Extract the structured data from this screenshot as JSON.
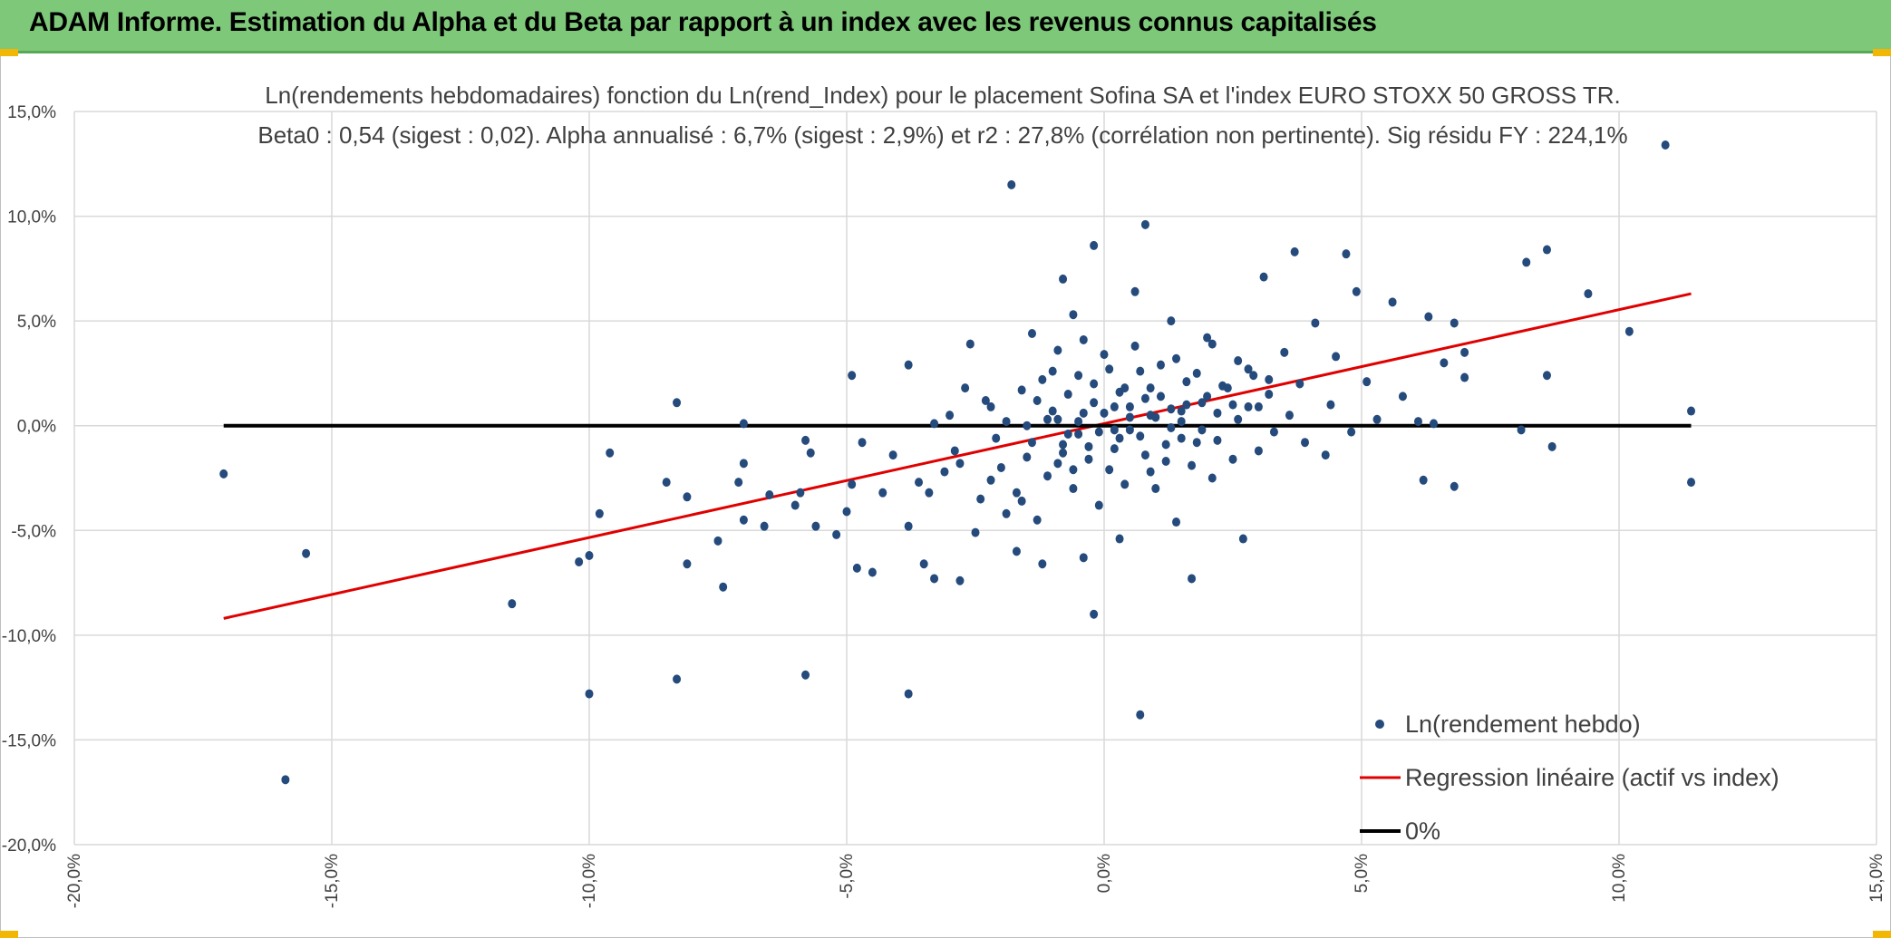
{
  "header": {
    "title": "ADAM Informe. Estimation du Alpha et du Beta par rapport à un index avec les revenus connus capitalisés"
  },
  "colors": {
    "banner": "#7ec87a",
    "points": "#254a7c",
    "regression": "#e00000",
    "zero_line": "#000000",
    "grid": "#d9d9d9",
    "accent": "#f2b705"
  },
  "chart_data": {
    "type": "scatter",
    "title": "Ln(rendements hebdomadaires) fonction du Ln(rend_Index) pour le placement Sofina SA et l'index EURO STOXX 50 GROSS TR.",
    "subtitle": "Beta0 : 0,54 (sigest : 0,02). Alpha annualisé : 6,7% (sigest : 2,9%) et r2 : 27,8% (corrélation non pertinente). Sig résidu FY : 224,1%",
    "xlabel": "",
    "ylabel": "",
    "xlim": [
      -20,
      15
    ],
    "ylim": [
      -20,
      15
    ],
    "x_ticks": [
      "-20,0%",
      "-15,0%",
      "-10,0%",
      "-5,0%",
      "0,0%",
      "5,0%",
      "10,0%",
      "15,0%"
    ],
    "y_ticks": [
      "15,0%",
      "10,0%",
      "5,0%",
      "0,0%",
      "-5,0%",
      "-10,0%",
      "-15,0%",
      "-20,0%"
    ],
    "grid": true,
    "legend_position": "bottom-right",
    "series": [
      {
        "name": "Ln(rendement hebdo)",
        "kind": "scatter",
        "points": [
          [
            -17.1,
            -2.3
          ],
          [
            -15.9,
            -16.9
          ],
          [
            -15.5,
            -6.1
          ],
          [
            -11.5,
            -8.5
          ],
          [
            -10.2,
            -6.5
          ],
          [
            -10.0,
            -12.8
          ],
          [
            -10.0,
            -6.2
          ],
          [
            -9.8,
            -4.2
          ],
          [
            -9.6,
            -1.3
          ],
          [
            -8.5,
            -2.7
          ],
          [
            -8.3,
            1.1
          ],
          [
            -8.3,
            -12.1
          ],
          [
            -8.1,
            -3.4
          ],
          [
            -8.1,
            -6.6
          ],
          [
            -7.5,
            -5.5
          ],
          [
            -7.4,
            -7.7
          ],
          [
            -7.1,
            -2.7
          ],
          [
            -7.0,
            0.1
          ],
          [
            -7.0,
            -1.8
          ],
          [
            -7.0,
            -4.5
          ],
          [
            -6.6,
            -4.8
          ],
          [
            -6.5,
            -3.3
          ],
          [
            -6.0,
            -3.8
          ],
          [
            -5.9,
            -3.2
          ],
          [
            -5.8,
            -11.9
          ],
          [
            -5.8,
            -0.7
          ],
          [
            -5.7,
            -1.3
          ],
          [
            -5.6,
            -4.8
          ],
          [
            -5.2,
            -5.2
          ],
          [
            -5.0,
            -4.1
          ],
          [
            -4.9,
            -2.8
          ],
          [
            -4.9,
            2.4
          ],
          [
            -4.8,
            -6.8
          ],
          [
            -4.7,
            -0.8
          ],
          [
            -4.5,
            -7.0
          ],
          [
            -4.3,
            -3.2
          ],
          [
            -4.1,
            -1.4
          ],
          [
            -3.8,
            2.9
          ],
          [
            -3.8,
            -12.8
          ],
          [
            -3.8,
            -4.8
          ],
          [
            -3.6,
            -2.7
          ],
          [
            -3.5,
            -6.6
          ],
          [
            -3.4,
            -3.2
          ],
          [
            -3.3,
            -7.3
          ],
          [
            -3.3,
            0.1
          ],
          [
            -3.1,
            -2.2
          ],
          [
            -2.9,
            -1.2
          ],
          [
            -2.8,
            -7.4
          ],
          [
            -2.7,
            1.8
          ],
          [
            -2.6,
            3.9
          ],
          [
            -2.5,
            -5.1
          ],
          [
            -2.3,
            1.2
          ],
          [
            -2.2,
            -2.6
          ],
          [
            -2.1,
            -0.6
          ],
          [
            -1.9,
            -4.2
          ],
          [
            -1.8,
            11.5
          ],
          [
            -1.7,
            -6.0
          ],
          [
            -1.6,
            -3.6
          ],
          [
            -1.5,
            -1.5
          ],
          [
            -1.4,
            4.4
          ],
          [
            -1.3,
            1.2
          ],
          [
            -1.2,
            -6.6
          ],
          [
            -1.1,
            0.3
          ],
          [
            -1.0,
            2.6
          ],
          [
            -0.9,
            -1.8
          ],
          [
            -0.8,
            -1.3
          ],
          [
            -0.8,
            7.0
          ],
          [
            -0.7,
            -0.4
          ],
          [
            -0.6,
            -3.0
          ],
          [
            -0.6,
            5.3
          ],
          [
            -0.5,
            2.4
          ],
          [
            -0.4,
            -6.3
          ],
          [
            -0.4,
            0.6
          ],
          [
            -0.3,
            -1.0
          ],
          [
            -0.2,
            -9.0
          ],
          [
            -0.2,
            8.6
          ],
          [
            -0.1,
            -0.3
          ],
          [
            0.0,
            3.4
          ],
          [
            0.1,
            -2.1
          ],
          [
            0.2,
            0.9
          ],
          [
            0.3,
            -5.4
          ],
          [
            0.3,
            -0.6
          ],
          [
            0.4,
            1.8
          ],
          [
            0.5,
            -0.2
          ],
          [
            0.6,
            6.4
          ],
          [
            0.7,
            -13.8
          ],
          [
            0.7,
            2.6
          ],
          [
            0.8,
            9.6
          ],
          [
            0.8,
            -1.4
          ],
          [
            0.9,
            0.5
          ],
          [
            1.0,
            -3.0
          ],
          [
            1.1,
            1.4
          ],
          [
            1.2,
            -0.9
          ],
          [
            1.3,
            5.0
          ],
          [
            1.4,
            -4.6
          ],
          [
            1.5,
            0.2
          ],
          [
            1.6,
            2.1
          ],
          [
            1.7,
            -7.3
          ],
          [
            1.8,
            -0.8
          ],
          [
            1.9,
            1.1
          ],
          [
            2.0,
            4.2
          ],
          [
            2.1,
            -2.5
          ],
          [
            2.2,
            0.6
          ],
          [
            2.3,
            1.9
          ],
          [
            2.5,
            -1.6
          ],
          [
            2.6,
            3.1
          ],
          [
            2.7,
            -5.4
          ],
          [
            2.8,
            0.9
          ],
          [
            2.9,
            2.4
          ],
          [
            3.0,
            -1.2
          ],
          [
            3.1,
            7.1
          ],
          [
            3.2,
            1.5
          ],
          [
            3.3,
            -0.3
          ],
          [
            3.5,
            3.5
          ],
          [
            3.6,
            0.5
          ],
          [
            3.7,
            8.3
          ],
          [
            3.8,
            2.0
          ],
          [
            3.9,
            -0.8
          ],
          [
            4.1,
            4.9
          ],
          [
            4.3,
            -1.4
          ],
          [
            4.4,
            1.0
          ],
          [
            4.5,
            3.3
          ],
          [
            4.7,
            8.2
          ],
          [
            4.8,
            -0.3
          ],
          [
            4.9,
            6.4
          ],
          [
            5.1,
            2.1
          ],
          [
            5.3,
            0.3
          ],
          [
            5.6,
            5.9
          ],
          [
            5.8,
            1.4
          ],
          [
            6.1,
            0.2
          ],
          [
            6.2,
            -2.6
          ],
          [
            6.3,
            5.2
          ],
          [
            6.4,
            0.1
          ],
          [
            6.6,
            3.0
          ],
          [
            6.8,
            -2.9
          ],
          [
            6.8,
            4.9
          ],
          [
            7.0,
            2.3
          ],
          [
            7.0,
            3.5
          ],
          [
            8.1,
            -0.2
          ],
          [
            8.2,
            7.8
          ],
          [
            8.6,
            8.4
          ],
          [
            8.6,
            2.4
          ],
          [
            8.7,
            -1.0
          ],
          [
            9.4,
            6.3
          ],
          [
            10.2,
            4.5
          ],
          [
            10.9,
            13.4
          ],
          [
            11.4,
            0.7
          ],
          [
            11.4,
            -2.7
          ],
          [
            -3.0,
            0.5
          ],
          [
            -2.8,
            -1.8
          ],
          [
            -2.4,
            -3.5
          ],
          [
            -2.2,
            0.9
          ],
          [
            -2.0,
            -2.0
          ],
          [
            -1.9,
            0.2
          ],
          [
            -1.7,
            -3.2
          ],
          [
            -1.6,
            1.7
          ],
          [
            -1.4,
            -0.8
          ],
          [
            -1.3,
            -4.5
          ],
          [
            -1.2,
            2.2
          ],
          [
            -1.1,
            -2.4
          ],
          [
            -1.0,
            0.7
          ],
          [
            -0.9,
            3.6
          ],
          [
            -0.8,
            -0.9
          ],
          [
            -0.7,
            1.5
          ],
          [
            -0.6,
            -2.1
          ],
          [
            -0.5,
            0.2
          ],
          [
            -0.4,
            4.1
          ],
          [
            -0.3,
            -1.6
          ],
          [
            -0.2,
            1.1
          ],
          [
            -0.1,
            -3.8
          ],
          [
            0.0,
            0.6
          ],
          [
            0.1,
            2.7
          ],
          [
            0.2,
            -1.1
          ],
          [
            0.3,
            1.6
          ],
          [
            0.4,
            -2.8
          ],
          [
            0.5,
            0.9
          ],
          [
            0.6,
            3.8
          ],
          [
            0.7,
            -0.5
          ],
          [
            0.8,
            1.3
          ],
          [
            0.9,
            -2.2
          ],
          [
            1.0,
            0.4
          ],
          [
            1.1,
            2.9
          ],
          [
            1.2,
            -1.7
          ],
          [
            1.3,
            0.8
          ],
          [
            1.4,
            3.2
          ],
          [
            1.5,
            -0.6
          ],
          [
            1.6,
            1.0
          ],
          [
            1.7,
            -1.9
          ],
          [
            1.8,
            2.5
          ],
          [
            1.9,
            -0.2
          ],
          [
            2.0,
            1.4
          ],
          [
            2.1,
            3.9
          ],
          [
            2.2,
            -0.7
          ],
          [
            2.4,
            1.8
          ],
          [
            2.6,
            0.3
          ],
          [
            2.8,
            2.7
          ],
          [
            3.0,
            0.9
          ],
          [
            3.2,
            2.2
          ],
          [
            -1.5,
            0.0
          ],
          [
            -0.5,
            -0.4
          ],
          [
            0.5,
            0.4
          ],
          [
            1.5,
            0.7
          ],
          [
            2.5,
            1.0
          ],
          [
            -0.9,
            0.3
          ],
          [
            0.2,
            -0.2
          ],
          [
            0.9,
            1.8
          ],
          [
            1.3,
            -0.1
          ],
          [
            -0.2,
            2.0
          ]
        ]
      },
      {
        "name": "Regression linéaire (actif vs index)",
        "kind": "line",
        "points": [
          [
            -17.1,
            -9.2
          ],
          [
            11.4,
            6.3
          ]
        ]
      },
      {
        "name": "0%",
        "kind": "line",
        "points": [
          [
            -17.1,
            0.0
          ],
          [
            11.4,
            0.0
          ]
        ]
      }
    ]
  }
}
